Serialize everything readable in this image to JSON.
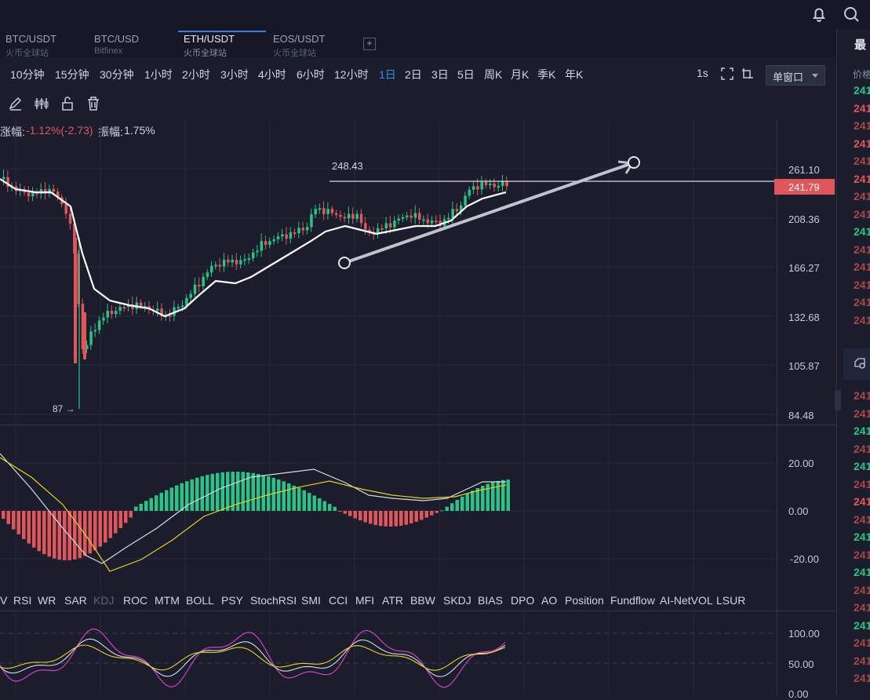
{
  "tabs": [
    {
      "pair": "BTC/USDT",
      "exchange": "火币全球站"
    },
    {
      "pair": "BTC/USD",
      "exchange": "Bitfinex"
    },
    {
      "pair": "ETH/USDT",
      "exchange": "火币全球站"
    },
    {
      "pair": "EOS/USDT",
      "exchange": "火币全球站"
    }
  ],
  "active_tab": 2,
  "intervals": [
    "10分钟",
    "15分钟",
    "30分钟",
    "1小时",
    "2小时",
    "3小时",
    "4小时",
    "6小时",
    "12小时",
    "1日",
    "2日",
    "3日",
    "5日",
    "周K",
    "月K",
    "季K",
    "年K"
  ],
  "selected_interval": "1日",
  "toolbar_right": {
    "refresh": "1s",
    "window_select": "单窗口"
  },
  "info_line": {
    "change_label": "涨幅:",
    "change_value": "-1.12%(-2.73)",
    "amplitude_label": "振幅:",
    "amplitude_value": "1.75%"
  },
  "main_chart": {
    "price_axis": [
      "261.10",
      "208.36",
      "166.27",
      "132.68",
      "105.87",
      "84.48"
    ],
    "current_price": "241.79",
    "high_marker": "248.43",
    "low_marker": "87 →"
  },
  "macd_axis": [
    "20.00",
    "0.00",
    "-20.00"
  ],
  "kdj_axis": [
    "100.00",
    "50.00",
    "0.00"
  ],
  "indicators": [
    "V",
    "RSI",
    "WR",
    "SAR",
    "KDJ",
    "ROC",
    "MTM",
    "BOLL",
    "PSY",
    "StochRSI",
    "SMI",
    "CCI",
    "MFI",
    "ATR",
    "BBW",
    "SKDJ",
    "BIAS",
    "DPO",
    "AO",
    "Position",
    "Fundflow",
    "AI-NetVOL",
    "LSUR"
  ],
  "dim_indicator": "KDJ",
  "right_panel": {
    "title": "最",
    "header": "价格",
    "rows_top": [
      {
        "v": "241",
        "c": "green"
      },
      {
        "v": "241",
        "c": "red"
      },
      {
        "v": "241",
        "c": "dred"
      },
      {
        "v": "241",
        "c": "red"
      },
      {
        "v": "241",
        "c": "dred"
      },
      {
        "v": "241",
        "c": "red"
      },
      {
        "v": "241",
        "c": "dred"
      },
      {
        "v": "241",
        "c": "dred"
      },
      {
        "v": "241",
        "c": "green"
      },
      {
        "v": "241",
        "c": "dred"
      },
      {
        "v": "241",
        "c": "dred"
      },
      {
        "v": "241",
        "c": "dred"
      },
      {
        "v": "241",
        "c": "dred"
      },
      {
        "v": "241",
        "c": "dred"
      }
    ],
    "rows_bottom": [
      {
        "v": "241",
        "c": "dred"
      },
      {
        "v": "241",
        "c": "dred"
      },
      {
        "v": "241",
        "c": "green"
      },
      {
        "v": "241",
        "c": "dred"
      },
      {
        "v": "241",
        "c": "green"
      },
      {
        "v": "241",
        "c": "dred"
      },
      {
        "v": "241",
        "c": "red"
      },
      {
        "v": "241",
        "c": "dred"
      },
      {
        "v": "241",
        "c": "green"
      },
      {
        "v": "241",
        "c": "dred"
      },
      {
        "v": "241",
        "c": "green"
      },
      {
        "v": "241",
        "c": "dred"
      },
      {
        "v": "241",
        "c": "dred"
      },
      {
        "v": "241",
        "c": "green"
      },
      {
        "v": "241",
        "c": "dred"
      },
      {
        "v": "241",
        "c": "dred"
      },
      {
        "v": "241",
        "c": "dred"
      }
    ]
  },
  "colors": {
    "up": "#2bc287",
    "down": "#e0575b",
    "accent": "#3b8bf0",
    "bg": "#1b1d2c"
  }
}
